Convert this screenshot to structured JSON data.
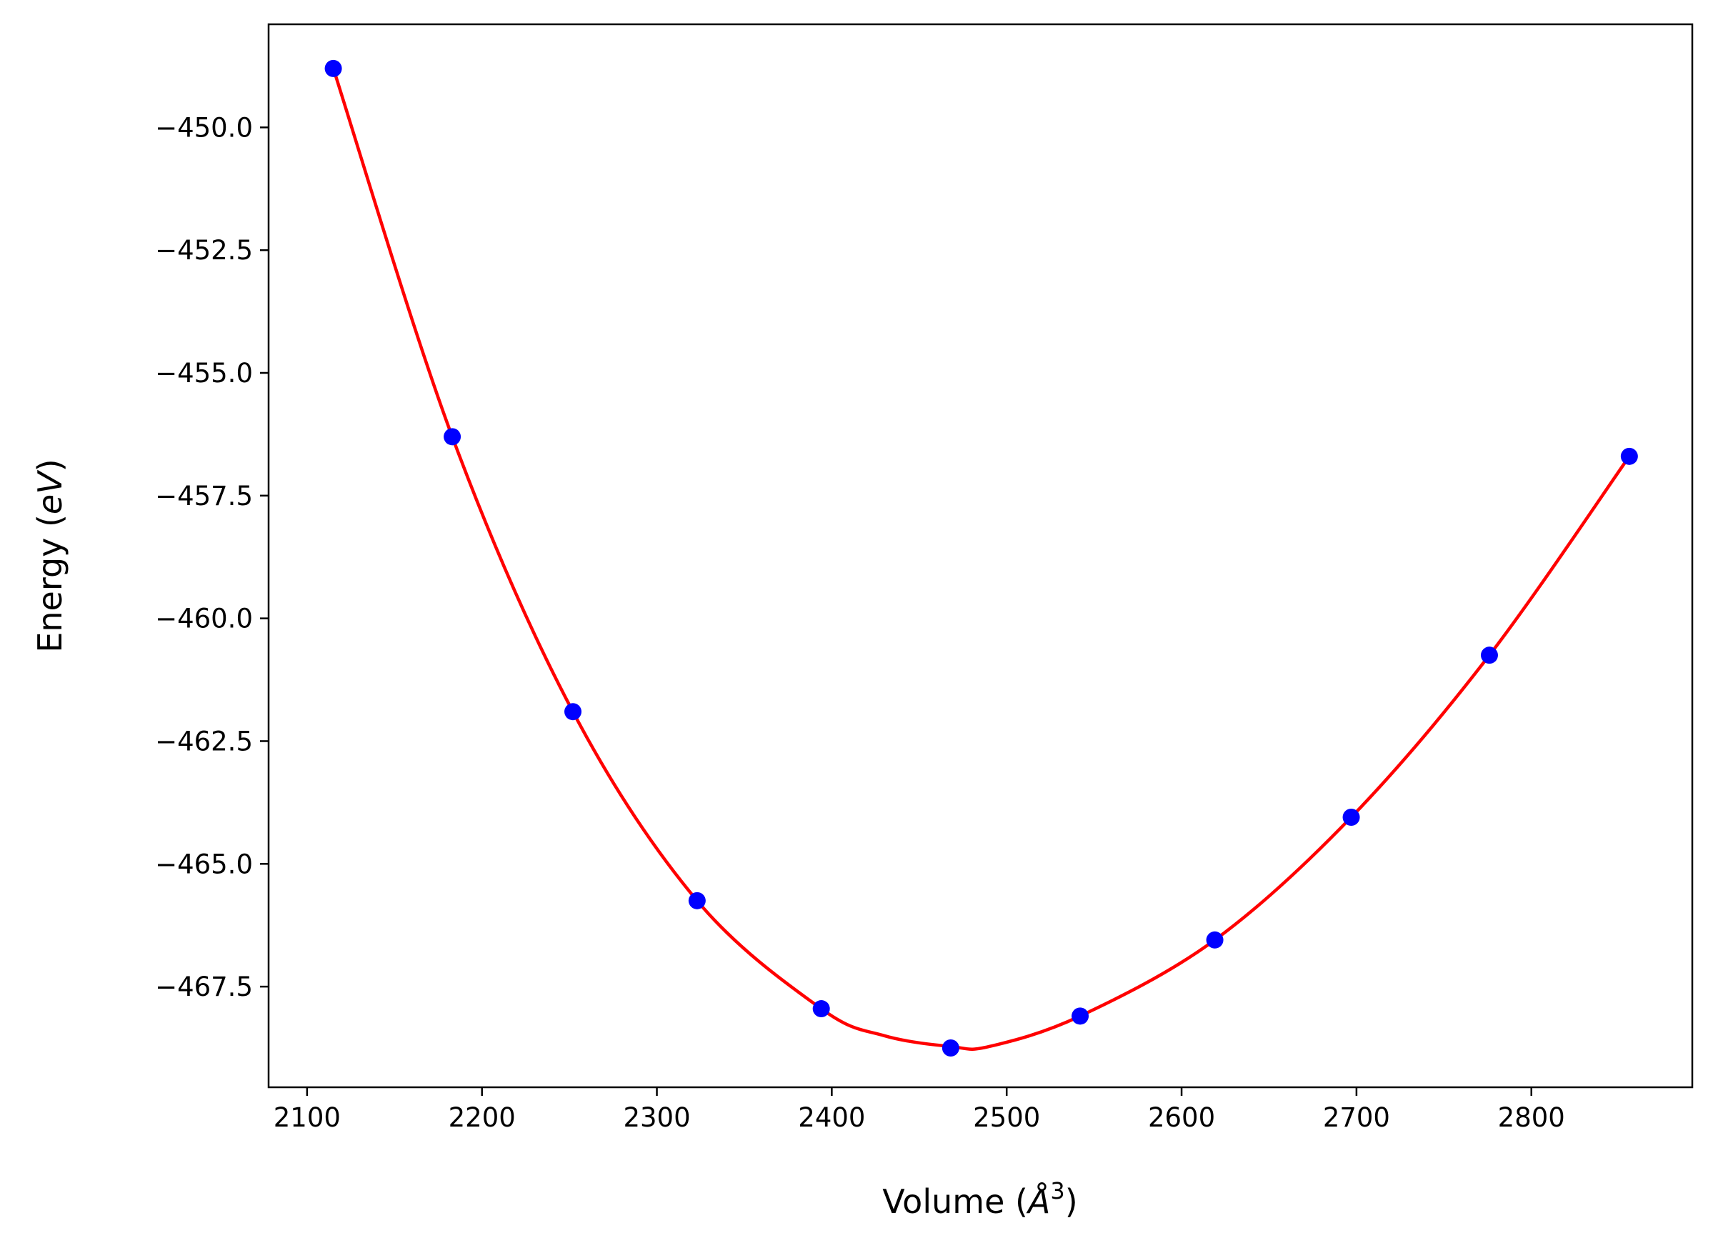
{
  "chart_data": {
    "type": "line",
    "title": "",
    "xlabel_main": "Volume (",
    "xlabel_unit": "Å",
    "xlabel_exp": "3",
    "xlabel_close": ")",
    "ylabel_main": "Energy (",
    "ylabel_unit": "eV",
    "ylabel_close": ")",
    "xlim": [
      2078,
      2892
    ],
    "ylim": [
      -469.55,
      -447.9
    ],
    "xticks": [
      2100,
      2200,
      2300,
      2400,
      2500,
      2600,
      2700,
      2800
    ],
    "xtick_labels": [
      "2100",
      "2200",
      "2300",
      "2400",
      "2500",
      "2600",
      "2700",
      "2800"
    ],
    "yticks": [
      -450.0,
      -452.5,
      -455.0,
      -457.5,
      -460.0,
      -462.5,
      -465.0,
      -467.5
    ],
    "ytick_labels": [
      "−450.0",
      "−452.5",
      "−455.0",
      "−457.5",
      "−460.0",
      "−462.5",
      "−465.0",
      "−467.5"
    ],
    "grid": false,
    "series": [
      {
        "kind": "points",
        "color": "#0000ff",
        "x": [
          2115,
          2183,
          2252,
          2323,
          2394,
          2468,
          2542,
          2619,
          2697,
          2776,
          2856
        ],
        "y": [
          -448.8,
          -456.3,
          -461.9,
          -465.75,
          -467.95,
          -468.75,
          -468.1,
          -466.55,
          -464.05,
          -460.75,
          -456.7
        ]
      },
      {
        "kind": "fit-curve",
        "color": "#ff0000",
        "x": [
          2115,
          2183,
          2252,
          2323,
          2394,
          2430,
          2468,
          2490,
          2542,
          2619,
          2697,
          2776,
          2856
        ],
        "y": [
          -448.8,
          -456.3,
          -461.9,
          -465.75,
          -467.95,
          -468.5,
          -468.72,
          -468.72,
          -468.1,
          -466.55,
          -464.05,
          -460.75,
          -456.7
        ]
      }
    ]
  }
}
